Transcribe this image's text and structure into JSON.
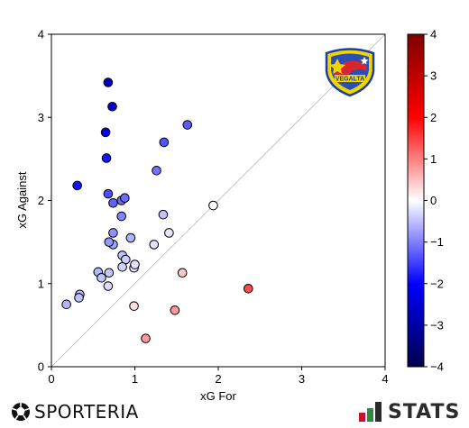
{
  "chart_data": {
    "type": "scatter",
    "xlabel": "xG For",
    "ylabel": "xG Against",
    "xlim": [
      0,
      4
    ],
    "ylim": [
      0,
      4
    ],
    "xticks": [
      "0",
      "1",
      "2",
      "3",
      "4"
    ],
    "yticks": [
      "0",
      "1",
      "2",
      "3",
      "4"
    ],
    "diagonal": true,
    "grid": false,
    "colorbar": {
      "min": -4,
      "max": 4,
      "ticks": [
        "4",
        "3",
        "2",
        "1",
        "0",
        "−1",
        "−2",
        "−3",
        "−4"
      ],
      "colors": [
        "#00004c",
        "#0000ff",
        "#ffffff",
        "#ff0000",
        "#7f0000"
      ]
    },
    "points": [
      {
        "x": 0.68,
        "y": 3.42,
        "c": -2.74
      },
      {
        "x": 0.73,
        "y": 3.13,
        "c": -2.4
      },
      {
        "x": 0.65,
        "y": 2.82,
        "c": -2.17
      },
      {
        "x": 0.66,
        "y": 2.51,
        "c": -1.85
      },
      {
        "x": 0.31,
        "y": 2.18,
        "c": -1.87
      },
      {
        "x": 1.35,
        "y": 2.7,
        "c": -1.35
      },
      {
        "x": 1.63,
        "y": 2.91,
        "c": -1.28
      },
      {
        "x": 1.26,
        "y": 2.36,
        "c": -1.1
      },
      {
        "x": 0.68,
        "y": 2.08,
        "c": -1.4
      },
      {
        "x": 0.74,
        "y": 1.97,
        "c": -1.23
      },
      {
        "x": 0.84,
        "y": 2.0,
        "c": -1.16
      },
      {
        "x": 0.88,
        "y": 2.03,
        "c": -1.15
      },
      {
        "x": 0.84,
        "y": 1.81,
        "c": -0.97
      },
      {
        "x": 0.74,
        "y": 1.61,
        "c": -0.87
      },
      {
        "x": 0.74,
        "y": 1.47,
        "c": -0.73
      },
      {
        "x": 0.69,
        "y": 1.5,
        "c": -0.81
      },
      {
        "x": 0.95,
        "y": 1.55,
        "c": -0.6
      },
      {
        "x": 0.85,
        "y": 1.34,
        "c": -0.49
      },
      {
        "x": 0.89,
        "y": 1.29,
        "c": -0.4
      },
      {
        "x": 0.85,
        "y": 1.2,
        "c": -0.35
      },
      {
        "x": 0.99,
        "y": 1.19,
        "c": -0.2
      },
      {
        "x": 1.0,
        "y": 1.23,
        "c": -0.23
      },
      {
        "x": 1.23,
        "y": 1.47,
        "c": -0.24
      },
      {
        "x": 1.34,
        "y": 1.83,
        "c": -0.49
      },
      {
        "x": 1.41,
        "y": 1.61,
        "c": -0.2
      },
      {
        "x": 0.56,
        "y": 1.14,
        "c": -0.58
      },
      {
        "x": 0.6,
        "y": 1.07,
        "c": -0.47
      },
      {
        "x": 0.69,
        "y": 1.13,
        "c": -0.44
      },
      {
        "x": 0.68,
        "y": 0.97,
        "c": -0.29
      },
      {
        "x": 0.34,
        "y": 0.87,
        "c": -0.53
      },
      {
        "x": 0.33,
        "y": 0.83,
        "c": -0.5
      },
      {
        "x": 0.18,
        "y": 0.75,
        "c": -0.57
      },
      {
        "x": 1.94,
        "y": 1.94,
        "c": 0.0
      },
      {
        "x": 1.57,
        "y": 1.13,
        "c": 0.44
      },
      {
        "x": 0.99,
        "y": 0.73,
        "c": 0.26
      },
      {
        "x": 1.48,
        "y": 0.68,
        "c": 0.8
      },
      {
        "x": 1.13,
        "y": 0.34,
        "c": 0.79
      },
      {
        "x": 2.36,
        "y": 0.94,
        "c": 1.42
      }
    ]
  },
  "branding": {
    "left_logo_text": "SPORTERIA",
    "left_logo_icon": "soccer-ball-icon",
    "right_logo_text": "STATS",
    "right_logo_icon": "stats-bars-icon",
    "team_crest_text": "VEGALTA",
    "team_crest_icon": "vegalta-crest-icon"
  }
}
